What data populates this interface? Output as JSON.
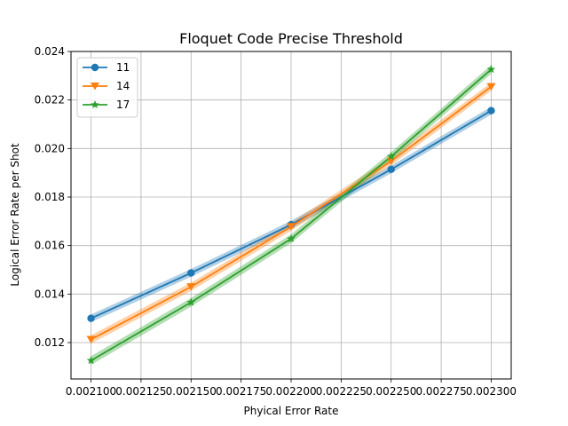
{
  "chart_data": {
    "type": "line",
    "title": "Floquet Code Precise Threshold",
    "xlabel": "Phyical Error Rate",
    "ylabel": "Logical Error Rate per Shot",
    "xlim": [
      0.00209,
      0.00231
    ],
    "ylim": [
      0.0105,
      0.024
    ],
    "xticks": [
      "0.002100",
      "0.002125",
      "0.002150",
      "0.002175",
      "0.002200",
      "0.002225",
      "0.002250",
      "0.002275",
      "0.002300"
    ],
    "xtick_values": [
      0.0021,
      0.002125,
      0.00215,
      0.002175,
      0.0022,
      0.002225,
      0.00225,
      0.002275,
      0.0023
    ],
    "yticks": [
      "0.012",
      "0.014",
      "0.016",
      "0.018",
      "0.020",
      "0.022",
      "0.024"
    ],
    "ytick_values": [
      0.012,
      0.014,
      0.016,
      0.018,
      0.02,
      0.022,
      0.024
    ],
    "grid": true,
    "legend_position": "top-left",
    "x": [
      0.0021,
      0.00215,
      0.0022,
      0.00225,
      0.0023
    ],
    "series": [
      {
        "name": "11",
        "color": "#1f77b4",
        "marker": "circle",
        "values": [
          0.013,
          0.01487,
          0.01686,
          0.01914,
          0.02156
        ],
        "band": 0.00016
      },
      {
        "name": "14",
        "color": "#ff7f0e",
        "marker": "triangle-down",
        "values": [
          0.01213,
          0.0143,
          0.01678,
          0.01948,
          0.02255
        ],
        "band": 0.00017
      },
      {
        "name": "17",
        "color": "#2ca02c",
        "marker": "star",
        "values": [
          0.01126,
          0.01366,
          0.01628,
          0.01967,
          0.02326
        ],
        "band": 0.00018
      }
    ]
  }
}
